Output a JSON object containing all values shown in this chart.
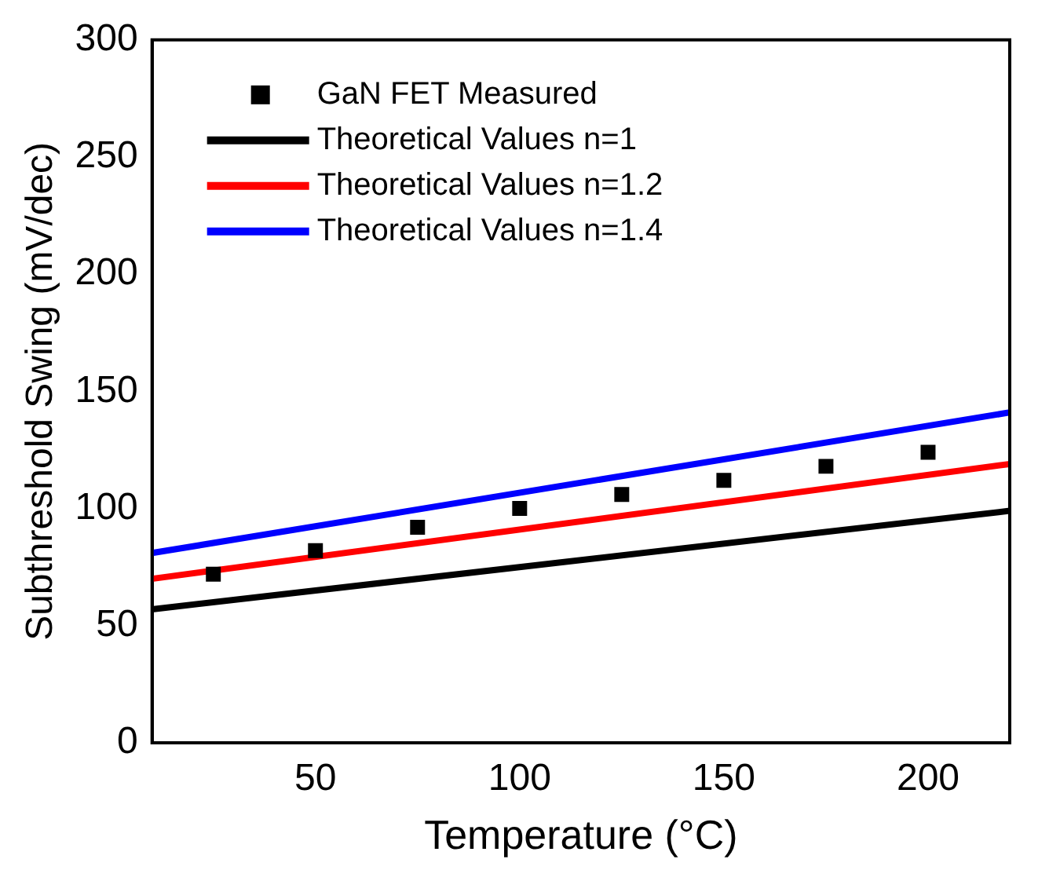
{
  "chart_data": {
    "type": "scatter",
    "xlabel": "Temperature (°C)",
    "ylabel": "Subthreshold Swing (mV/dec)",
    "xlim": [
      10,
      220
    ],
    "xticks": [
      50,
      100,
      150,
      200
    ],
    "ylim": [
      0,
      300
    ],
    "yticks": [
      0,
      50,
      100,
      150,
      200,
      250,
      300
    ],
    "grid": false,
    "legend": "top left",
    "series": [
      {
        "name": "GaN FET Measured",
        "marker": "square",
        "color": "#000000",
        "x": [
          25,
          50,
          75,
          100,
          125,
          150,
          175,
          200
        ],
        "values": [
          72,
          82,
          92,
          100,
          106,
          112,
          118,
          124
        ]
      },
      {
        "name": "Theoretical Values n=1",
        "type": "line",
        "marker": "none",
        "color": "#000000",
        "x": [
          10,
          220
        ],
        "values": [
          57,
          99
        ]
      },
      {
        "name": "Theoretical Values n=1.2",
        "type": "line",
        "marker": "none",
        "color": "#ff0000",
        "x": [
          10,
          220
        ],
        "values": [
          70,
          119
        ]
      },
      {
        "name": "Theoretical Values n=1.4",
        "type": "line",
        "marker": "none",
        "color": "#0000ff",
        "x": [
          10,
          220
        ],
        "values": [
          81,
          141
        ]
      }
    ]
  }
}
